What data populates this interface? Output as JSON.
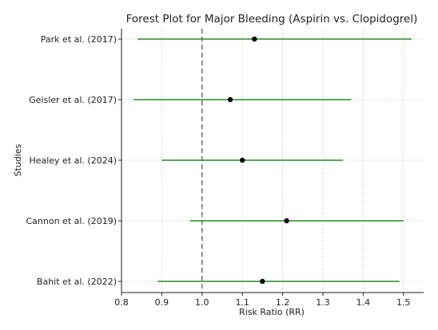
{
  "chart_data": {
    "type": "scatter",
    "subtype": "forest-plot",
    "title": "Forest Plot for Major Bleeding (Aspirin vs. Clopidogrel)",
    "xlabel": "Risk Ratio (RR)",
    "ylabel": "Studies",
    "xlim": [
      0.8,
      1.55
    ],
    "xticks": [
      "0.8",
      "0.9",
      "1.0",
      "1.1",
      "1.2",
      "1.3",
      "1.4",
      "1.5"
    ],
    "reference_line": 1.0,
    "grid": true,
    "legend": "none",
    "studies": [
      {
        "label": "Park et al. (2017)",
        "rr": 1.13,
        "ci_low": 0.84,
        "ci_high": 1.52
      },
      {
        "label": "Geisler et al. (2017)",
        "rr": 1.07,
        "ci_low": 0.83,
        "ci_high": 1.37
      },
      {
        "label": "Healey et al. (2024)",
        "rr": 1.1,
        "ci_low": 0.9,
        "ci_high": 1.35
      },
      {
        "label": "Cannon et al. (2019)",
        "rr": 1.21,
        "ci_low": 0.97,
        "ci_high": 1.5
      },
      {
        "label": "Bahit et al. (2022)",
        "rr": 1.15,
        "ci_low": 0.89,
        "ci_high": 1.49
      }
    ],
    "colors": {
      "ci_line": "#228b22",
      "point": "#000000",
      "reference": "#666666",
      "grid": "#cfcfcf"
    }
  }
}
